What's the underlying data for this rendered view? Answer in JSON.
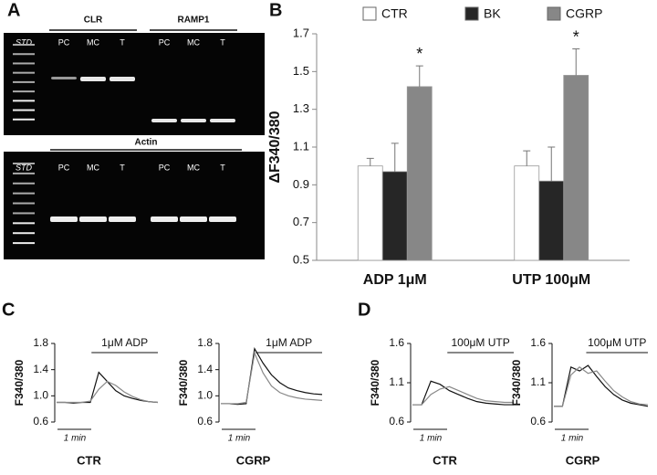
{
  "gel": {
    "panel_label": "A",
    "std_label": "STD",
    "top_groups": [
      {
        "label": "CLR",
        "lanes": [
          "PC",
          "MC",
          "T"
        ]
      },
      {
        "label": "RAMP1",
        "lanes": [
          "PC",
          "MC",
          "T"
        ]
      }
    ],
    "bottom_group": {
      "label": "Actin",
      "lanes": [
        "PC",
        "MC",
        "T",
        "PC",
        "MC",
        "T"
      ]
    }
  },
  "chart_data": [
    {
      "type": "bar",
      "panel_label": "B",
      "y_label": "ΔF340/380",
      "categories": [
        "ADP 1μM",
        "UTP 100μM"
      ],
      "series": [
        {
          "name": "CTR",
          "color": "#ffffff",
          "values": [
            1.0,
            1.0
          ],
          "errors": [
            0.04,
            0.08
          ]
        },
        {
          "name": "BK",
          "color": "#262626",
          "values": [
            0.97,
            0.92
          ],
          "errors": [
            0.15,
            0.18
          ]
        },
        {
          "name": "CGRP",
          "color": "#878787",
          "values": [
            1.42,
            1.48
          ],
          "errors": [
            0.11,
            0.14
          ]
        }
      ],
      "annotations": [
        "*",
        "*"
      ],
      "ylim": [
        0.5,
        1.7
      ],
      "yticks": [
        0.5,
        0.7,
        0.9,
        1.1,
        1.3,
        1.5,
        1.7
      ],
      "legend": "top"
    },
    {
      "type": "line",
      "panel_label": "C",
      "title": "CTR",
      "y_label": "F340/380",
      "stimulus": "1μM ADP",
      "scale_bar": "1 min",
      "ylim": [
        0.6,
        1.8
      ],
      "yticks": [
        0.6,
        {
          "value": 1,
          "label": "1.0"
        },
        1.4,
        1.8
      ],
      "series": [
        {
          "color": "#111111",
          "values": [
            0.9,
            0.9,
            0.89,
            0.9,
            0.9,
            1.36,
            1.22,
            1.08,
            1.0,
            0.96,
            0.93,
            0.91,
            0.9
          ]
        },
        {
          "color": "#888888",
          "values": [
            0.9,
            0.9,
            0.9,
            0.9,
            0.92,
            1.1,
            1.22,
            1.16,
            1.06,
            0.99,
            0.94,
            0.91,
            0.9
          ]
        }
      ]
    },
    {
      "type": "line",
      "title": "CGRP",
      "y_label": "F340/380",
      "stimulus": "1μM ADP",
      "scale_bar": "1 min",
      "ylim": [
        0.6,
        1.8
      ],
      "yticks": [
        0.6,
        {
          "value": 1,
          "label": "1.0"
        },
        1.4,
        1.8
      ],
      "series": [
        {
          "color": "#111111",
          "values": [
            0.88,
            0.88,
            0.87,
            0.88,
            1.72,
            1.5,
            1.32,
            1.2,
            1.12,
            1.08,
            1.05,
            1.03,
            1.02
          ]
        },
        {
          "color": "#888888",
          "values": [
            0.88,
            0.88,
            0.88,
            0.9,
            1.65,
            1.35,
            1.15,
            1.05,
            1.0,
            0.97,
            0.95,
            0.94,
            0.93
          ]
        }
      ]
    },
    {
      "type": "line",
      "panel_label": "D",
      "title": "CTR",
      "y_label": "F340/380",
      "stimulus": "100μM UTP",
      "scale_bar": "1 min",
      "ylim": [
        0.6,
        1.6
      ],
      "yticks": [
        0.6,
        1.1,
        1.6
      ],
      "series": [
        {
          "color": "#111111",
          "values": [
            0.82,
            0.82,
            1.12,
            1.08,
            1.0,
            0.95,
            0.9,
            0.86,
            0.84,
            0.83,
            0.82,
            0.82
          ]
        },
        {
          "color": "#888888",
          "values": [
            0.82,
            0.82,
            0.95,
            1.02,
            1.05,
            1.0,
            0.95,
            0.9,
            0.87,
            0.86,
            0.85,
            0.85
          ]
        }
      ]
    },
    {
      "type": "line",
      "title": "CGRP",
      "y_label": "F340/380",
      "stimulus": "100μM UTP",
      "scale_bar": "1 min",
      "ylim": [
        0.6,
        1.6
      ],
      "yticks": [
        0.6,
        1.1,
        1.6
      ],
      "series": [
        {
          "color": "#111111",
          "values": [
            0.8,
            0.8,
            1.3,
            1.25,
            1.32,
            1.18,
            1.05,
            0.95,
            0.88,
            0.84,
            0.82,
            0.8
          ]
        },
        {
          "color": "#888888",
          "values": [
            0.8,
            0.8,
            1.2,
            1.3,
            1.22,
            1.25,
            1.12,
            1.0,
            0.92,
            0.86,
            0.83,
            0.82
          ]
        }
      ]
    }
  ]
}
